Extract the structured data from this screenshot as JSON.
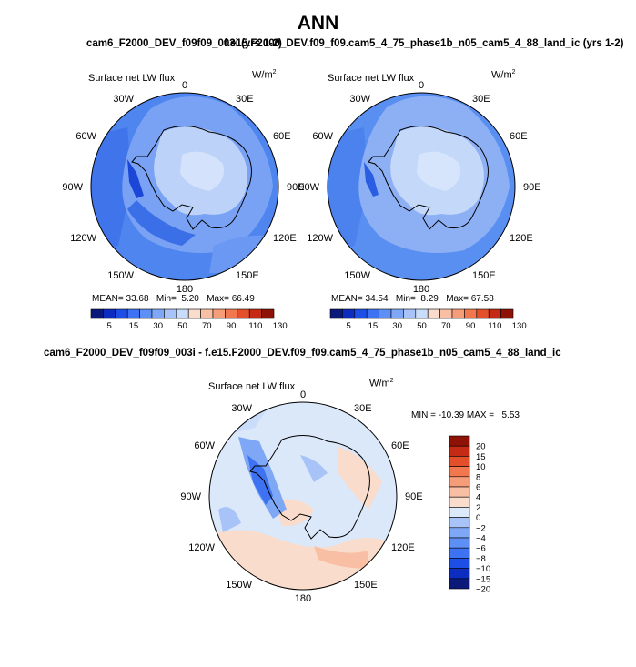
{
  "figure": {
    "title": "ANN",
    "subtitle_top_left": "cam6_F2000_DEV_f09f09_003i (yrs 1-2)",
    "subtitle_top_right": "f.e15.F2000_DEV.f09_f09.cam5_4_75_phase1b_n05_cam5_4_88_land_ic (yrs 1-2)",
    "subtitle_bottom": "cam6_F2000_DEV_f09f09_003i - f.e15.F2000_DEV.f09_f09.cam5_4_75_phase1b_n05_cam5_4_88_land_ic"
  },
  "panels": [
    {
      "id": "case1",
      "variable": "Surface net LW flux",
      "units_prefix": "W/m",
      "units_exp": "2",
      "mean_label": "MEAN=",
      "mean": "33.68",
      "min_label": "Min=",
      "min": "5.20",
      "max_label": "Max=",
      "max": "66.49",
      "scale": [
        5,
        15,
        30,
        50,
        70,
        90,
        110,
        130
      ]
    },
    {
      "id": "case2",
      "variable": "Surface net LW flux",
      "units_prefix": "W/m",
      "units_exp": "2",
      "mean_label": "MEAN=",
      "mean": "34.54",
      "min_label": "Min=",
      "min": "8.29",
      "max_label": "Max=",
      "max": "67.58",
      "scale": [
        5,
        15,
        30,
        50,
        70,
        90,
        110,
        130
      ]
    },
    {
      "id": "diff",
      "variable": "Surface net LW flux",
      "units_prefix": "W/m",
      "units_exp": "2",
      "minmax_text": "MIN = -10.39 MAX =   5.53",
      "scale": [
        "20",
        "15",
        "10",
        "8",
        "6",
        "4",
        "2",
        "0",
        "−2",
        "−4",
        "−6",
        "−8",
        "−10",
        "−15",
        "−20"
      ]
    }
  ],
  "longitudes": [
    "0",
    "30E",
    "60E",
    "90E",
    "120E",
    "150E",
    "180",
    "150W",
    "120W",
    "90W",
    "60W",
    "30W"
  ],
  "colors": {
    "abs_bins": [
      "#0b1a78",
      "#0d2cc0",
      "#1d4fe6",
      "#3d73f2",
      "#5e8ff4",
      "#7ea7f5",
      "#a8c3f7",
      "#c9dcf9",
      "#f9dccb",
      "#f8bfa4",
      "#f59c79",
      "#f1774f",
      "#e34f2b",
      "#c52a14",
      "#8f1206"
    ],
    "diff_bins": [
      "#8f1206",
      "#c52a14",
      "#e34f2b",
      "#f1774f",
      "#f59c79",
      "#f8bfa4",
      "#f9dccb",
      "#dce9fa",
      "#a8c3f7",
      "#7ea7f5",
      "#5e8ff4",
      "#3d73f2",
      "#1d4fe6",
      "#0d2cc0",
      "#0b1a78"
    ]
  }
}
